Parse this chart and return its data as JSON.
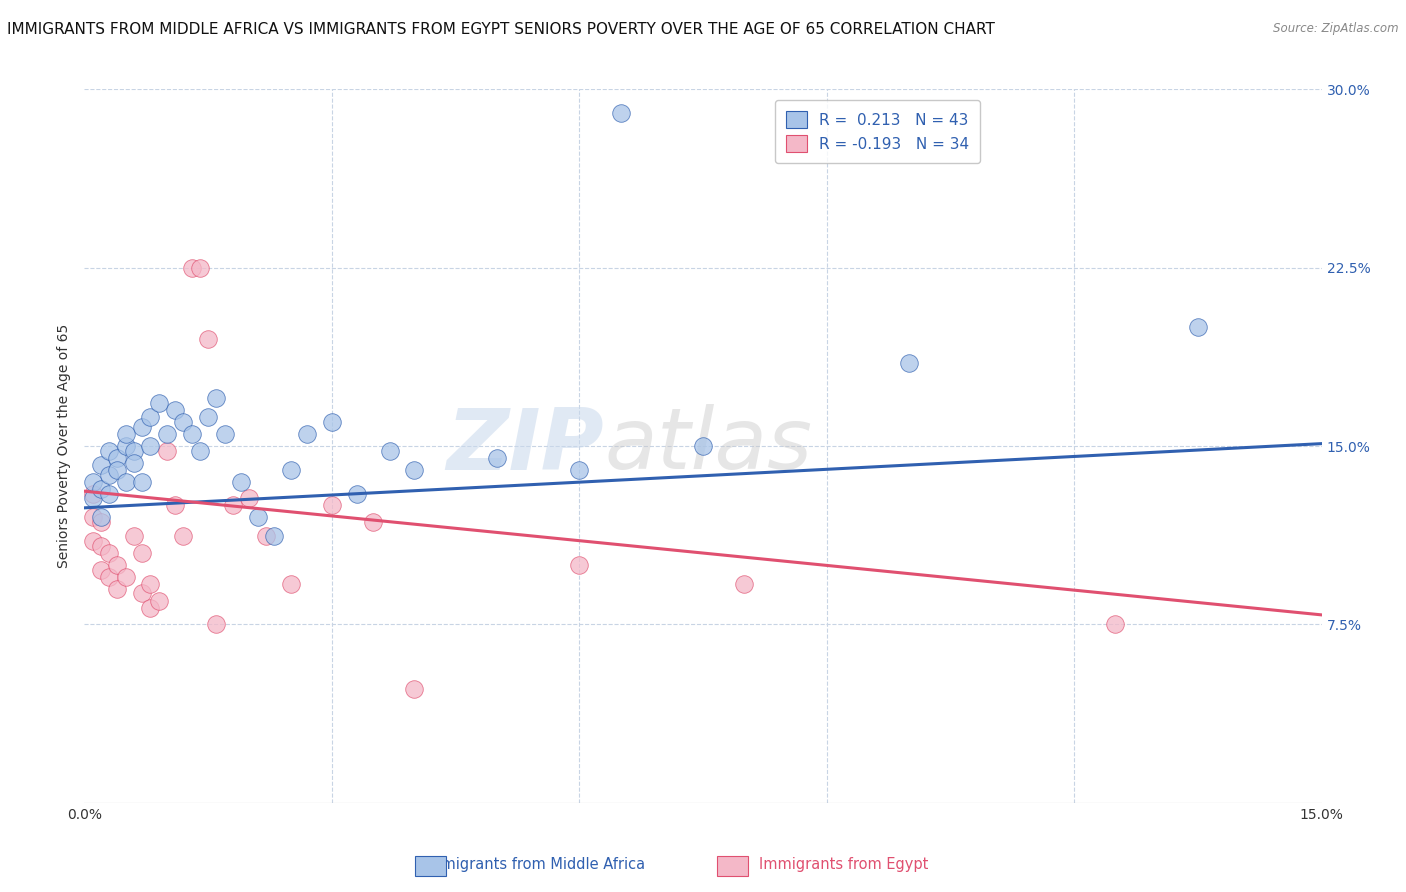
{
  "title": "IMMIGRANTS FROM MIDDLE AFRICA VS IMMIGRANTS FROM EGYPT SENIORS POVERTY OVER THE AGE OF 65 CORRELATION CHART",
  "source": "Source: ZipAtlas.com",
  "ylabel": "Seniors Poverty Over the Age of 65",
  "xlim": [
    0,
    0.15
  ],
  "ylim": [
    0,
    0.3
  ],
  "yticks": [
    0.075,
    0.15,
    0.225,
    0.3
  ],
  "yticklabels": [
    "7.5%",
    "15.0%",
    "22.5%",
    "30.0%"
  ],
  "watermark": "ZIPAtlas",
  "blue_R": 0.213,
  "blue_N": 43,
  "pink_R": -0.193,
  "pink_N": 34,
  "blue_color": "#a8c4e8",
  "pink_color": "#f4b8c8",
  "blue_line_color": "#3060b0",
  "pink_line_color": "#e05070",
  "blue_scatter": [
    [
      0.001,
      0.128
    ],
    [
      0.001,
      0.135
    ],
    [
      0.002,
      0.132
    ],
    [
      0.002,
      0.142
    ],
    [
      0.002,
      0.12
    ],
    [
      0.003,
      0.148
    ],
    [
      0.003,
      0.138
    ],
    [
      0.003,
      0.13
    ],
    [
      0.004,
      0.145
    ],
    [
      0.004,
      0.14
    ],
    [
      0.005,
      0.15
    ],
    [
      0.005,
      0.135
    ],
    [
      0.005,
      0.155
    ],
    [
      0.006,
      0.148
    ],
    [
      0.006,
      0.143
    ],
    [
      0.007,
      0.158
    ],
    [
      0.007,
      0.135
    ],
    [
      0.008,
      0.162
    ],
    [
      0.008,
      0.15
    ],
    [
      0.009,
      0.168
    ],
    [
      0.01,
      0.155
    ],
    [
      0.011,
      0.165
    ],
    [
      0.012,
      0.16
    ],
    [
      0.013,
      0.155
    ],
    [
      0.014,
      0.148
    ],
    [
      0.015,
      0.162
    ],
    [
      0.016,
      0.17
    ],
    [
      0.017,
      0.155
    ],
    [
      0.019,
      0.135
    ],
    [
      0.021,
      0.12
    ],
    [
      0.023,
      0.112
    ],
    [
      0.025,
      0.14
    ],
    [
      0.027,
      0.155
    ],
    [
      0.03,
      0.16
    ],
    [
      0.033,
      0.13
    ],
    [
      0.037,
      0.148
    ],
    [
      0.04,
      0.14
    ],
    [
      0.05,
      0.145
    ],
    [
      0.06,
      0.14
    ],
    [
      0.065,
      0.29
    ],
    [
      0.075,
      0.15
    ],
    [
      0.1,
      0.185
    ],
    [
      0.135,
      0.2
    ]
  ],
  "pink_scatter": [
    [
      0.001,
      0.13
    ],
    [
      0.001,
      0.12
    ],
    [
      0.001,
      0.11
    ],
    [
      0.002,
      0.118
    ],
    [
      0.002,
      0.108
    ],
    [
      0.002,
      0.098
    ],
    [
      0.003,
      0.105
    ],
    [
      0.003,
      0.095
    ],
    [
      0.004,
      0.1
    ],
    [
      0.004,
      0.09
    ],
    [
      0.005,
      0.095
    ],
    [
      0.006,
      0.112
    ],
    [
      0.007,
      0.105
    ],
    [
      0.007,
      0.088
    ],
    [
      0.008,
      0.082
    ],
    [
      0.008,
      0.092
    ],
    [
      0.009,
      0.085
    ],
    [
      0.01,
      0.148
    ],
    [
      0.011,
      0.125
    ],
    [
      0.012,
      0.112
    ],
    [
      0.013,
      0.225
    ],
    [
      0.014,
      0.225
    ],
    [
      0.015,
      0.195
    ],
    [
      0.016,
      0.075
    ],
    [
      0.018,
      0.125
    ],
    [
      0.02,
      0.128
    ],
    [
      0.022,
      0.112
    ],
    [
      0.025,
      0.092
    ],
    [
      0.03,
      0.125
    ],
    [
      0.035,
      0.118
    ],
    [
      0.04,
      0.048
    ],
    [
      0.06,
      0.1
    ],
    [
      0.08,
      0.092
    ],
    [
      0.125,
      0.075
    ]
  ],
  "blue_line": {
    "x0": 0.0,
    "y0": 0.124,
    "x1": 0.15,
    "y1": 0.151
  },
  "pink_line": {
    "x0": 0.0,
    "y0": 0.131,
    "x1": 0.15,
    "y1": 0.079
  },
  "background_color": "#ffffff",
  "grid_color": "#c8d4e4",
  "title_fontsize": 11,
  "axis_label_fontsize": 10,
  "tick_fontsize": 10,
  "right_tick_color": "#3060b0"
}
